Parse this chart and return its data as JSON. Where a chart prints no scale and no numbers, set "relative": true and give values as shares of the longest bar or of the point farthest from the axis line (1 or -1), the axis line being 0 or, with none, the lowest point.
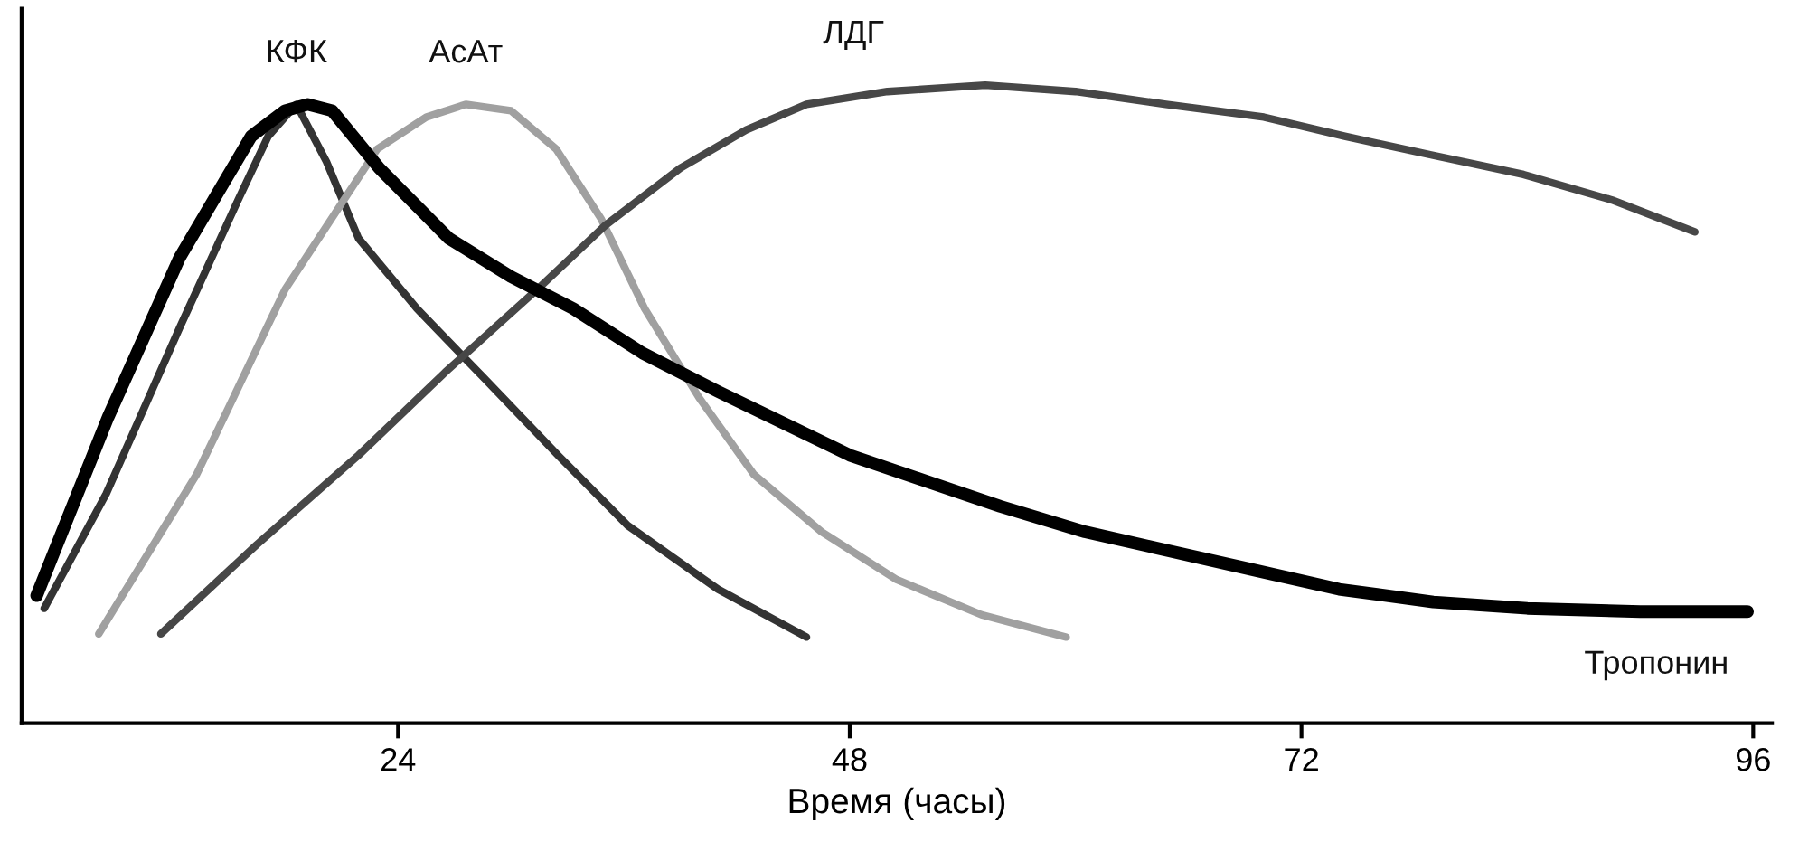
{
  "chart_data": {
    "type": "line",
    "relative": true,
    "xlabel": "Время (часы)",
    "xlim": [
      4,
      97
    ],
    "xticks": [
      24,
      48,
      72,
      96
    ],
    "grid": false,
    "legend": false,
    "marker": "none",
    "line_style": "solid",
    "series": [
      {
        "name": "КФК",
        "color": "#333333",
        "x": [
          5.2,
          8.5,
          12.4,
          15.5,
          17.1,
          18.6,
          20.2,
          21.9,
          25,
          28.6,
          32.5,
          36.2,
          41,
          45.7
        ],
        "values": [
          0.18,
          0.36,
          0.62,
          0.82,
          0.92,
          0.97,
          0.88,
          0.76,
          0.65,
          0.54,
          0.42,
          0.31,
          0.21,
          0.135
        ]
      },
      {
        "name": "АсАт",
        "color": "#a0a0a0",
        "x": [
          8.1,
          13.3,
          18,
          22.9,
          25.5,
          27.6,
          30,
          32.4,
          34.8,
          37.1,
          40,
          42.9,
          46.5,
          50.5,
          55,
          59.5
        ],
        "values": [
          0.14,
          0.39,
          0.68,
          0.9,
          0.95,
          0.97,
          0.96,
          0.9,
          0.79,
          0.65,
          0.51,
          0.39,
          0.3,
          0.225,
          0.17,
          0.135
        ]
      },
      {
        "name": "ЛДГ",
        "color": "#474747",
        "x": [
          11.4,
          16.5,
          21.9,
          26.5,
          31.4,
          35,
          39,
          42.5,
          45.7,
          50,
          55.2,
          60,
          64.8,
          70,
          74.3,
          79,
          83.8,
          88.5,
          92.9
        ],
        "values": [
          0.14,
          0.28,
          0.42,
          0.55,
          0.68,
          0.78,
          0.87,
          0.93,
          0.97,
          0.99,
          1.0,
          0.99,
          0.97,
          0.95,
          0.92,
          0.89,
          0.86,
          0.82,
          0.77
        ]
      },
      {
        "name": "Тропонин",
        "color": "#000000",
        "x": [
          4.8,
          8.6,
          12.4,
          16.2,
          18,
          19.2,
          20.5,
          23,
          26.7,
          30,
          33.3,
          37,
          41,
          44.5,
          48,
          52,
          56,
          60.5,
          65,
          69.5,
          74,
          79,
          84,
          90,
          95.7
        ],
        "values": [
          0.2,
          0.48,
          0.73,
          0.92,
          0.96,
          0.97,
          0.96,
          0.87,
          0.76,
          0.7,
          0.65,
          0.58,
          0.52,
          0.47,
          0.42,
          0.38,
          0.34,
          0.3,
          0.27,
          0.24,
          0.21,
          0.19,
          0.18,
          0.175,
          0.175
        ]
      }
    ]
  }
}
